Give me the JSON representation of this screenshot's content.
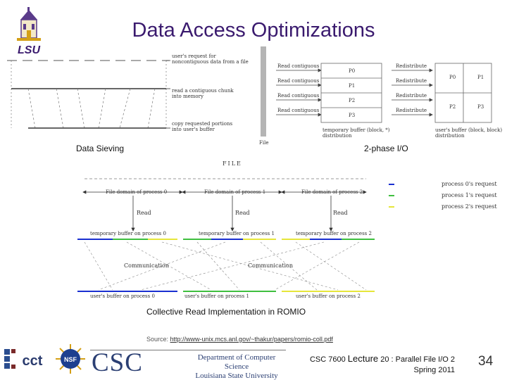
{
  "title": "Data Access Optimizations",
  "sieving": {
    "labels": [
      "user's request for noncontiguous data from a file",
      "read a contiguous chunk into memory",
      "copy requested portions into user's buffer"
    ],
    "caption": "Data Sieving"
  },
  "twophase": {
    "file_label": "File",
    "read_labels": [
      "Read contiguous",
      "Read contiguous",
      "Read contiguous",
      "Read contiguous"
    ],
    "buffer_cells": [
      "P0",
      "P1",
      "P2",
      "P3"
    ],
    "buffer_caption": "temporary buffer (block, *) distribution",
    "redistribute_labels": [
      "Redistribute",
      "Redistribute",
      "Redistribute",
      "Redistribute"
    ],
    "user_cells": [
      "P0",
      "P1",
      "P2",
      "P3"
    ],
    "user_caption": "user's buffer (block, block) distribution",
    "caption": "2-phase I/O"
  },
  "collective": {
    "file_label": "FILE",
    "domains": [
      "File domain of process 0",
      "File domain of process 1",
      "File domain of process 2"
    ],
    "read_label": "Read",
    "temp_buffers": [
      "temporary buffer on process 0",
      "temporary buffer on process 1",
      "temporary buffer on process 2"
    ],
    "comm_label": "Communication",
    "user_buffers": [
      "user's buffer on process 0",
      "user's buffer on process 1",
      "user's buffer on process 2"
    ],
    "legend": [
      "process 0's request",
      "process 1's request",
      "process 2's request"
    ],
    "caption": "Collective Read Implementation in ROMIO"
  },
  "source": {
    "prefix": "Source: ",
    "url": "http://www-unix.mcs.anl.gov/~thakur/papers/romio-coll.pdf"
  },
  "footer": {
    "csc": "CSC",
    "dept_line1": "Department of Computer Science",
    "dept_line2": "Louisiana State University",
    "course_prefix": "CSC 7600 ",
    "course_lecture": "Lecture",
    "course_suffix": " 20 : Parallel File I/O 2",
    "term": "Spring 2011",
    "page": "34"
  },
  "logos": {
    "lsu": "LSU",
    "cct": "cct",
    "nsf": "NSF"
  },
  "colors": {
    "title": "#3a1a6e",
    "process0": "#1a2fd0",
    "process1": "#3fbf3f",
    "process2": "#e6e63a"
  }
}
